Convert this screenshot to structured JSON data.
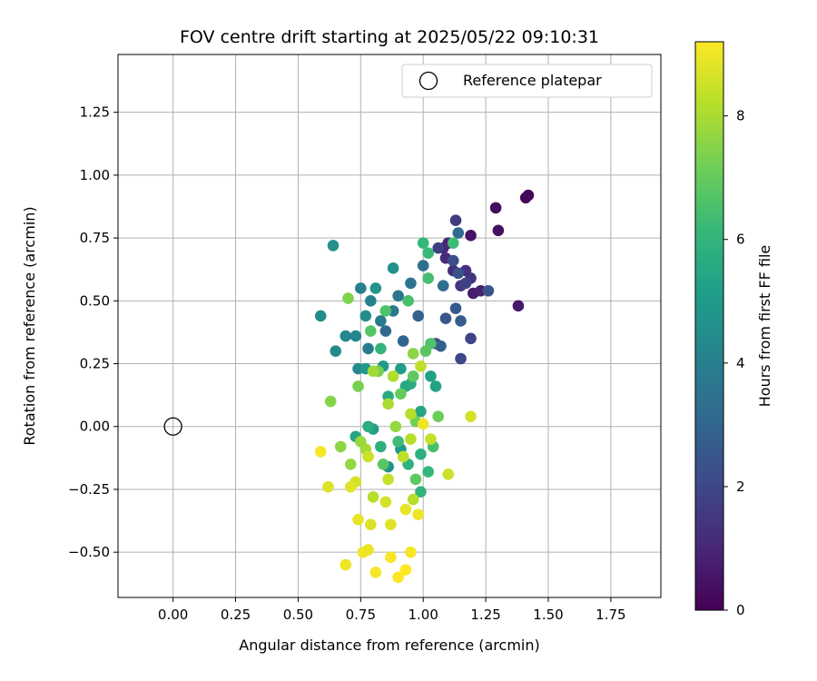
{
  "chart_data": {
    "type": "scatter",
    "title": "FOV centre drift starting at 2025/05/22 09:10:31",
    "xlabel": "Angular distance from reference (arcmin)",
    "ylabel": "Rotation from reference (arcmin)",
    "xlim": [
      -0.22,
      1.95
    ],
    "ylim": [
      -0.68,
      1.48
    ],
    "xticks": [
      0.0,
      0.25,
      0.5,
      0.75,
      1.0,
      1.25,
      1.5,
      1.75
    ],
    "xtick_labels": [
      "0.00",
      "0.25",
      "0.50",
      "0.75",
      "1.00",
      "1.25",
      "1.50",
      "1.75"
    ],
    "yticks": [
      -0.5,
      -0.25,
      0.0,
      0.25,
      0.5,
      0.75,
      1.0,
      1.25
    ],
    "ytick_labels": [
      "−0.50",
      "−0.25",
      "0.00",
      "0.25",
      "0.50",
      "0.75",
      "1.00",
      "1.25"
    ],
    "grid": true,
    "legend": {
      "placement": "top-right",
      "entries": [
        "Reference platepar"
      ]
    },
    "reference_point": {
      "x": 0.0,
      "y": 0.0
    },
    "colorbar": {
      "label": "Hours from first FF file",
      "colormap": "viridis",
      "range": [
        0,
        9.2
      ],
      "ticks": [
        0,
        2,
        4,
        6,
        8
      ],
      "tick_labels": [
        "0",
        "2",
        "4",
        "6",
        "8"
      ],
      "colormap_stops": [
        "#440154",
        "#482878",
        "#3e4989",
        "#31688e",
        "#26828e",
        "#1f9e89",
        "#35b779",
        "#6ece58",
        "#b5de2b",
        "#fde725"
      ]
    },
    "series_columns": [
      "x",
      "y",
      "hours"
    ],
    "points": [
      [
        1.41,
        0.91,
        0.1
      ],
      [
        1.42,
        0.92,
        0.2
      ],
      [
        1.29,
        0.87,
        0.3
      ],
      [
        1.3,
        0.78,
        0.4
      ],
      [
        1.19,
        0.76,
        0.5
      ],
      [
        1.38,
        0.48,
        0.6
      ],
      [
        1.2,
        0.53,
        0.7
      ],
      [
        1.23,
        0.54,
        0.8
      ],
      [
        1.1,
        0.73,
        0.9
      ],
      [
        1.08,
        0.71,
        1.0
      ],
      [
        1.09,
        0.67,
        1.1
      ],
      [
        1.12,
        0.62,
        1.2
      ],
      [
        1.17,
        0.62,
        1.3
      ],
      [
        1.19,
        0.59,
        1.4
      ],
      [
        1.15,
        0.56,
        1.5
      ],
      [
        1.13,
        0.82,
        1.6
      ],
      [
        1.06,
        0.71,
        1.7
      ],
      [
        1.17,
        0.57,
        1.8
      ],
      [
        1.19,
        0.35,
        1.9
      ],
      [
        1.15,
        0.27,
        2.0
      ],
      [
        1.05,
        0.33,
        2.1
      ],
      [
        1.12,
        0.66,
        2.2
      ],
      [
        1.14,
        0.61,
        2.3
      ],
      [
        1.26,
        0.54,
        2.4
      ],
      [
        1.09,
        0.43,
        2.5
      ],
      [
        1.13,
        0.47,
        2.6
      ],
      [
        1.15,
        0.42,
        2.7
      ],
      [
        1.07,
        0.32,
        2.8
      ],
      [
        0.98,
        0.44,
        2.9
      ],
      [
        0.92,
        0.34,
        3.0
      ],
      [
        0.85,
        0.38,
        3.1
      ],
      [
        1.14,
        0.77,
        3.2
      ],
      [
        1.08,
        0.56,
        3.3
      ],
      [
        1.0,
        0.64,
        3.4
      ],
      [
        0.95,
        0.57,
        3.5
      ],
      [
        0.9,
        0.52,
        3.6
      ],
      [
        0.88,
        0.46,
        3.7
      ],
      [
        0.83,
        0.42,
        3.8
      ],
      [
        0.78,
        0.31,
        3.9
      ],
      [
        0.75,
        0.55,
        4.0
      ],
      [
        0.79,
        0.5,
        4.1
      ],
      [
        0.73,
        0.36,
        4.2
      ],
      [
        0.69,
        0.36,
        4.3
      ],
      [
        0.65,
        0.3,
        4.4
      ],
      [
        0.59,
        0.44,
        4.5
      ],
      [
        0.64,
        0.72,
        4.6
      ],
      [
        0.88,
        0.63,
        4.7
      ],
      [
        0.81,
        0.55,
        4.8
      ],
      [
        0.77,
        0.23,
        4.9
      ],
      [
        0.84,
        0.24,
        5.0
      ],
      [
        0.91,
        0.23,
        5.1
      ],
      [
        1.03,
        0.2,
        5.2
      ],
      [
        1.05,
        0.16,
        5.3
      ],
      [
        0.99,
        0.06,
        5.4
      ],
      [
        0.93,
        0.16,
        5.5
      ],
      [
        0.86,
        0.12,
        5.6
      ],
      [
        0.78,
        0.0,
        5.7
      ],
      [
        0.83,
        -0.08,
        5.8
      ],
      [
        0.94,
        -0.15,
        5.9
      ],
      [
        0.99,
        -0.26,
        6.0
      ],
      [
        1.0,
        0.73,
        6.1
      ],
      [
        1.02,
        0.69,
        6.2
      ],
      [
        1.12,
        0.73,
        6.3
      ],
      [
        1.02,
        0.59,
        6.4
      ],
      [
        0.94,
        0.5,
        6.5
      ],
      [
        0.85,
        0.46,
        6.6
      ],
      [
        0.79,
        0.38,
        6.7
      ],
      [
        1.01,
        0.3,
        6.8
      ],
      [
        0.96,
        0.2,
        6.9
      ],
      [
        0.91,
        0.13,
        7.0
      ],
      [
        1.06,
        0.04,
        7.1
      ],
      [
        0.97,
        0.02,
        7.2
      ],
      [
        0.74,
        0.16,
        7.3
      ],
      [
        0.7,
        0.51,
        7.4
      ],
      [
        0.63,
        0.1,
        7.5
      ],
      [
        0.67,
        -0.08,
        7.6
      ],
      [
        0.71,
        -0.15,
        7.7
      ],
      [
        0.75,
        -0.06,
        7.8
      ],
      [
        0.8,
        0.22,
        7.9
      ],
      [
        0.86,
        0.09,
        8.0
      ],
      [
        0.88,
        0.2,
        8.1
      ],
      [
        0.95,
        0.05,
        8.2
      ],
      [
        0.99,
        0.24,
        8.3
      ],
      [
        1.03,
        -0.05,
        8.4
      ],
      [
        1.1,
        -0.19,
        8.5
      ],
      [
        1.19,
        0.04,
        8.6
      ],
      [
        0.62,
        -0.24,
        8.7
      ],
      [
        0.71,
        -0.24,
        8.8
      ],
      [
        0.74,
        -0.37,
        8.9
      ],
      [
        0.76,
        -0.5,
        9.0
      ],
      [
        0.81,
        -0.58,
        9.1
      ],
      [
        0.87,
        -0.52,
        9.1
      ],
      [
        0.9,
        -0.6,
        9.2
      ],
      [
        0.93,
        -0.57,
        9.2
      ],
      [
        0.95,
        -0.5,
        9.1
      ],
      [
        0.98,
        -0.35,
        9.0
      ],
      [
        0.93,
        -0.33,
        8.9
      ],
      [
        0.87,
        -0.39,
        8.8
      ],
      [
        0.79,
        -0.39,
        8.7
      ],
      [
        0.73,
        -0.22,
        8.6
      ],
      [
        0.78,
        -0.12,
        8.5
      ],
      [
        0.86,
        -0.21,
        8.4
      ],
      [
        0.92,
        -0.12,
        8.3
      ],
      [
        0.96,
        -0.29,
        8.2
      ],
      [
        0.59,
        -0.1,
        9.1
      ],
      [
        0.69,
        -0.55,
        9.0
      ],
      [
        0.78,
        -0.49,
        8.9
      ],
      [
        0.85,
        -0.3,
        8.6
      ],
      [
        1.0,
        0.01,
        9.0
      ],
      [
        0.95,
        -0.05,
        8.2
      ],
      [
        0.96,
        0.29,
        7.6
      ],
      [
        1.03,
        0.33,
        6.6
      ],
      [
        0.82,
        0.22,
        7.3
      ],
      [
        0.89,
        0.0,
        7.7
      ],
      [
        0.97,
        -0.21,
        6.9
      ],
      [
        1.04,
        -0.08,
        6.5
      ],
      [
        0.77,
        -0.09,
        7.9
      ],
      [
        0.8,
        -0.28,
        8.2
      ],
      [
        0.84,
        -0.15,
        6.8
      ],
      [
        0.9,
        -0.06,
        6.3
      ],
      [
        0.73,
        -0.04,
        5.4
      ],
      [
        0.8,
        -0.01,
        5.2
      ],
      [
        0.86,
        -0.16,
        4.7
      ],
      [
        0.91,
        -0.09,
        4.9
      ],
      [
        0.99,
        -0.11,
        5.8
      ],
      [
        1.02,
        -0.18,
        6.1
      ],
      [
        0.95,
        0.17,
        5.6
      ],
      [
        0.83,
        0.31,
        6.0
      ],
      [
        0.74,
        0.23,
        4.3
      ],
      [
        0.77,
        0.44,
        4.5
      ]
    ]
  }
}
